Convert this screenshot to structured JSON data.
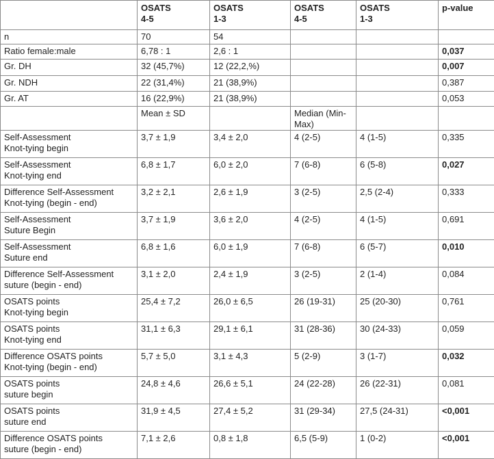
{
  "table": {
    "header": [
      null,
      "OSATS\n4-5",
      "OSATS\n1-3",
      "OSATS\n4-5",
      "OSATS\n1-3",
      "p-value"
    ],
    "rows": [
      {
        "cells": [
          "n",
          "70",
          "54",
          null,
          null,
          null
        ]
      },
      {
        "cells": [
          "Ratio female:male",
          "6,78 : 1",
          "2,6 : 1",
          null,
          null,
          "0,037"
        ],
        "p_bold": true
      },
      {
        "cells": [
          "Gr. DH",
          "32 (45,7%)",
          "12 (22,2,%)",
          null,
          null,
          "0,007"
        ],
        "p_bold": true
      },
      {
        "cells": [
          "Gr. NDH",
          "22 (31,4%)",
          "21 (38,9%)",
          null,
          null,
          "0,387"
        ]
      },
      {
        "cells": [
          "Gr. AT",
          "16 (22,9%)",
          "21 (38,9%)",
          null,
          null,
          "0,053"
        ]
      },
      {
        "cells": [
          null,
          "Mean ± SD",
          null,
          "Median (Min-Max)",
          null,
          null
        ]
      },
      {
        "cells": [
          "Self-Assessment\nKnot-tying begin",
          "3,7 ± 1,9",
          "3,4 ± 2,0",
          "4 (2-5)",
          "4 (1-5)",
          "0,335"
        ]
      },
      {
        "cells": [
          "Self-Assessment\nKnot-tying end",
          "6,8 ± 1,7",
          "6,0 ± 2,0",
          "7 (6-8)",
          "6 (5-8)",
          "0,027"
        ],
        "p_bold": true
      },
      {
        "cells": [
          "Difference Self-Assessment\nKnot-tying (begin - end)",
          "3,2 ± 2,1",
          "2,6 ± 1,9",
          "3 (2-5)",
          "2,5 (2-4)",
          "0,333"
        ]
      },
      {
        "cells": [
          "Self-Assessment\nSuture Begin",
          "3,7 ± 1,9",
          "3,6 ± 2,0",
          "4 (2-5)",
          "4 (1-5)",
          "0,691"
        ]
      },
      {
        "cells": [
          "Self-Assessment\nSuture end",
          "6,8 ± 1,6",
          "6,0 ± 1,9",
          "7 (6-8)",
          "6 (5-7)",
          "0,010"
        ],
        "p_bold": true
      },
      {
        "cells": [
          "Difference Self-Assessment\nsuture (begin - end)",
          "3,1 ± 2,0",
          "2,4 ± 1,9",
          "3 (2-5)",
          "2 (1-4)",
          "0,084"
        ]
      },
      {
        "cells": [
          "OSATS points\nKnot-tying begin",
          "25,4 ± 7,2",
          "26,0 ± 6,5",
          "26 (19-31)",
          "25 (20-30)",
          "0,761"
        ]
      },
      {
        "cells": [
          "OSATS points\nKnot-tying end",
          "31,1 ± 6,3",
          "29,1 ± 6,1",
          "31 (28-36)",
          "30 (24-33)",
          "0,059"
        ]
      },
      {
        "cells": [
          "Difference OSATS points\nKnot-tying (begin - end)",
          "5,7 ± 5,0",
          "3,1 ± 4,3",
          "5 (2-9)",
          "3 (1-7)",
          "0,032"
        ],
        "p_bold": true
      },
      {
        "cells": [
          "OSATS points\nsuture begin",
          "24,8 ± 4,6",
          "26,6 ± 5,1",
          "24 (22-28)",
          "26 (22-31)",
          "0,081"
        ]
      },
      {
        "cells": [
          "OSATS points\nsuture end",
          "31,9 ± 4,5",
          "27,4 ± 5,2",
          "31 (29-34)",
          "27,5 (24-31)",
          "<0,001"
        ],
        "p_bold": true
      },
      {
        "cells": [
          "Difference OSATS points\nsuture (begin - end)",
          "7,1 ± 2,6",
          "0,8 ± 1,8",
          "6,5 (5-9)",
          "1 (0-2)",
          "<0,001"
        ],
        "p_bold": true
      }
    ]
  }
}
